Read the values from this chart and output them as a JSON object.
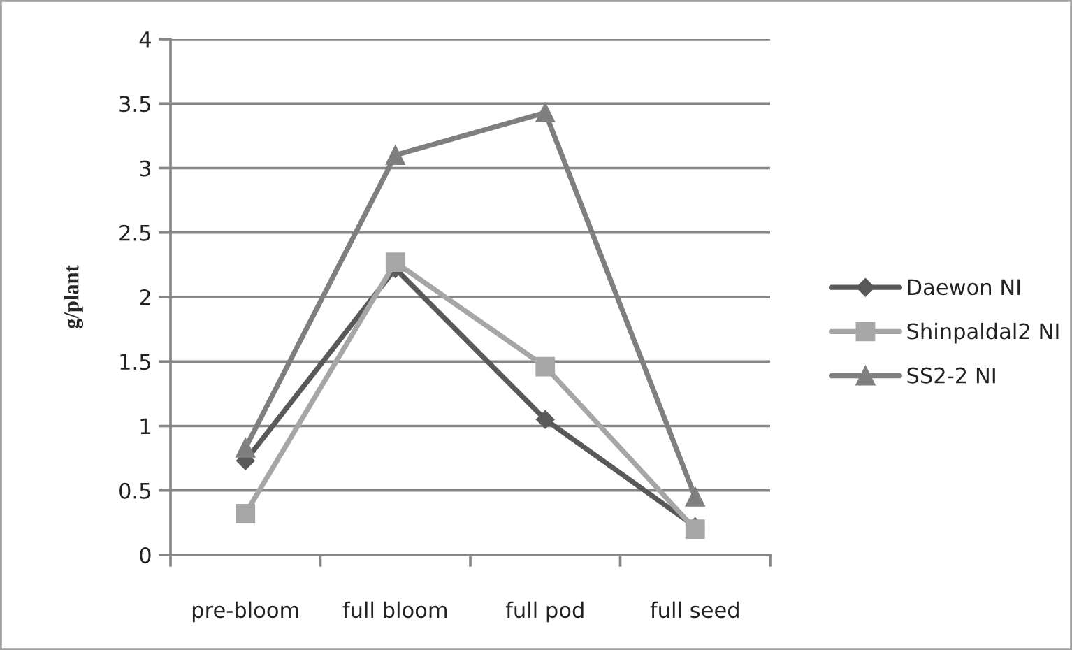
{
  "chart_data": {
    "type": "line",
    "ylabel": "g/plant",
    "categories": [
      "pre-bloom",
      "full bloom",
      "full pod",
      "full seed"
    ],
    "series": [
      {
        "name": "Daewon NI",
        "color": "#595959",
        "marker": "diamond",
        "values": [
          0.73,
          2.22,
          1.05,
          0.22
        ]
      },
      {
        "name": "Shinpaldal2 NI",
        "color": "#a6a6a6",
        "marker": "square",
        "values": [
          0.32,
          2.27,
          1.46,
          0.2
        ]
      },
      {
        "name": "SS2-2 NI",
        "color": "#7f7f7f",
        "marker": "triangle",
        "values": [
          0.83,
          3.1,
          3.43,
          0.45
        ]
      }
    ],
    "ylim": [
      0,
      4
    ],
    "yticks": [
      0,
      0.5,
      1,
      1.5,
      2,
      2.5,
      3,
      3.5,
      4
    ],
    "grid": "y",
    "legend": "right",
    "line_style": "solid"
  }
}
